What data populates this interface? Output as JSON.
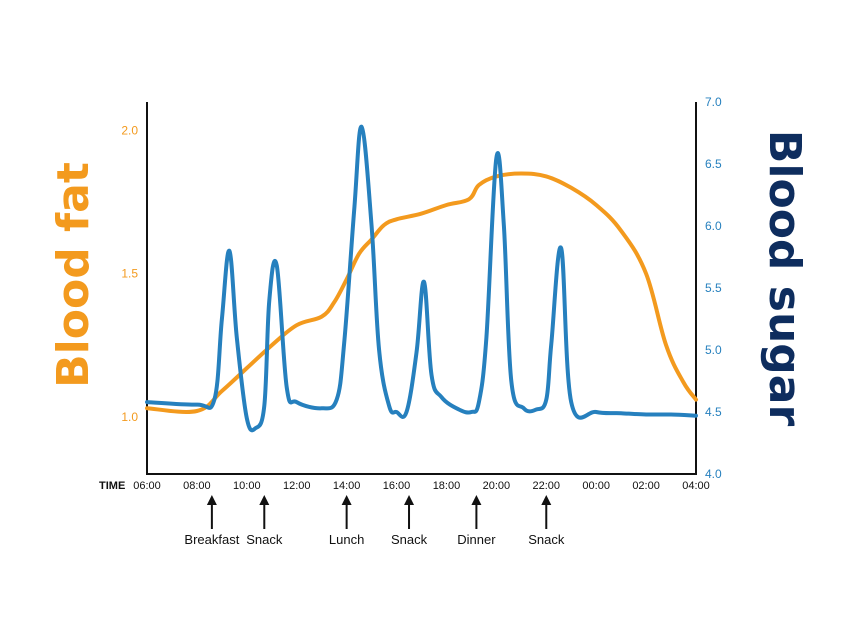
{
  "chart_data": {
    "type": "line",
    "x_title": "TIME",
    "x_ticks": [
      "06:00",
      "08:00",
      "10:00",
      "12:00",
      "14:00",
      "16:00",
      "18:00",
      "20:00",
      "22:00",
      "00:00",
      "02:00",
      "04:00"
    ],
    "left_axis": {
      "label": "Blood fat",
      "ticks": [
        "1.0",
        "1.5",
        "2.0"
      ],
      "ylim": [
        0.8,
        2.1
      ]
    },
    "right_axis": {
      "label": "Blood sugar",
      "ticks": [
        "4.0",
        "4.5",
        "5.0",
        "5.5",
        "6.0",
        "6.5",
        "7.0"
      ],
      "ylim": [
        4.0,
        7.0
      ]
    },
    "events": [
      {
        "label": "Breakfast",
        "time": 8.6
      },
      {
        "label": "Snack",
        "time": 10.7
      },
      {
        "label": "Lunch",
        "time": 14.0
      },
      {
        "label": "Snack",
        "time": 16.5
      },
      {
        "label": "Dinner",
        "time": 19.2
      },
      {
        "label": "Snack",
        "time": 22.0
      }
    ],
    "series": [
      {
        "axis": "left",
        "color": "#F39A1E",
        "x": [
          6.0,
          8.0,
          9.0,
          10.0,
          11.0,
          12.0,
          13.0,
          13.5,
          14.0,
          14.5,
          15.0,
          15.5,
          16.0,
          17.0,
          18.0,
          18.9,
          19.3,
          20.0,
          21.0,
          22.0,
          23.0,
          24.0,
          25.0,
          26.0,
          26.8,
          27.5,
          28.0
        ],
        "values": [
          1.03,
          1.02,
          1.09,
          1.17,
          1.25,
          1.32,
          1.35,
          1.4,
          1.48,
          1.57,
          1.62,
          1.67,
          1.69,
          1.71,
          1.74,
          1.76,
          1.81,
          1.84,
          1.85,
          1.84,
          1.8,
          1.74,
          1.65,
          1.5,
          1.25,
          1.12,
          1.06
        ]
      },
      {
        "axis": "right",
        "color": "#2680BE",
        "x": [
          6.0,
          8.0,
          8.7,
          9.0,
          9.3,
          9.6,
          10.0,
          10.35,
          10.7,
          10.9,
          11.2,
          11.6,
          12.0,
          13.0,
          13.6,
          13.9,
          14.3,
          14.6,
          15.0,
          15.3,
          15.7,
          16.0,
          16.4,
          16.8,
          17.1,
          17.4,
          17.8,
          18.5,
          19.0,
          19.3,
          19.6,
          20.0,
          20.3,
          20.6,
          21.1,
          21.6,
          22.0,
          22.2,
          22.6,
          23.0,
          24.0,
          25.0,
          26.0,
          27.0,
          28.0
        ],
        "values": [
          4.58,
          4.56,
          4.6,
          5.25,
          5.8,
          5.1,
          4.45,
          4.37,
          4.55,
          5.4,
          5.68,
          4.7,
          4.58,
          4.53,
          4.6,
          5.05,
          6.12,
          6.8,
          6.0,
          5.0,
          4.55,
          4.5,
          4.5,
          4.98,
          5.55,
          4.8,
          4.62,
          4.52,
          4.5,
          4.58,
          5.1,
          6.55,
          6.0,
          4.75,
          4.53,
          4.52,
          4.6,
          5.05,
          5.82,
          4.58,
          4.5,
          4.49,
          4.48,
          4.48,
          4.47
        ]
      }
    ]
  }
}
